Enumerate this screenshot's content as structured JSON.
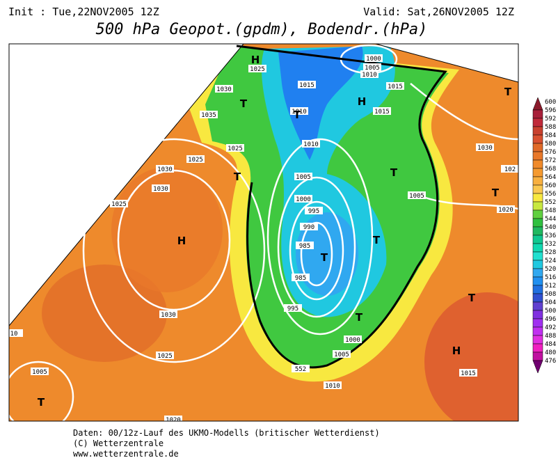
{
  "header": {
    "init": "Init : Tue,22NOV2005 12Z",
    "valid": "Valid: Sat,26NOV2005 12Z",
    "title": "500 hPa Geopot.(gpdm), Bodendr.(hPa)"
  },
  "colorbar": {
    "levels": [
      600,
      596,
      592,
      588,
      584,
      580,
      576,
      572,
      568,
      564,
      560,
      556,
      552,
      548,
      544,
      540,
      536,
      532,
      528,
      524,
      520,
      516,
      512,
      508,
      504,
      500,
      496,
      492,
      488,
      484,
      480,
      476
    ],
    "colors": [
      "#8b1a2b",
      "#a8203a",
      "#c02a3a",
      "#c8402e",
      "#d85030",
      "#e06a28",
      "#e8782a",
      "#f08a2a",
      "#f59a30",
      "#f8b040",
      "#fac850",
      "#f8e840",
      "#c8e840",
      "#60d040",
      "#30c040",
      "#20b860",
      "#10c890",
      "#10d8b0",
      "#20e0d0",
      "#20c8e0",
      "#30a8f0",
      "#2090f0",
      "#2070e0",
      "#3050d0",
      "#6040d0",
      "#8030e0",
      "#a030f0",
      "#c030f0",
      "#e030e0",
      "#f020c0",
      "#c010a0",
      "#700070"
    ]
  },
  "map": {
    "isobar_labels": [
      "1000",
      "1005",
      "1010",
      "1015",
      "1015",
      "1025",
      "1030",
      "1035",
      "1010",
      "1015",
      "1010",
      "1025",
      "1030",
      "1030",
      "1025",
      "1005",
      "1005",
      "1030",
      "1025",
      "1000",
      "995",
      "990",
      "985",
      "985",
      "1020",
      "102",
      "1030",
      "995",
      "1000",
      "1005",
      "1025",
      "1005",
      "1010",
      "1015",
      "1020",
      "10",
      "552"
    ],
    "pressure_centers": [
      "H",
      "H",
      "H",
      "H",
      "T",
      "T",
      "T",
      "T",
      "T",
      "T",
      "T",
      "T",
      "T",
      "T",
      "T"
    ]
  },
  "footer": {
    "line1": "Daten: 00/12z-Lauf des UKMO-Modells (britischer Wetterdienst)",
    "line2": "(C) Wetterzentrale",
    "line3": "www.wetterzentrale.de"
  }
}
